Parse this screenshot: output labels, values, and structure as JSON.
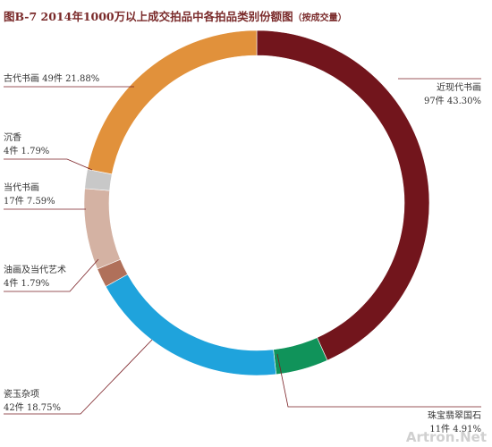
{
  "title": "图B-7  2014年1000万以上成交拍品中各拍品类别份额图",
  "subtitle": "（按成交量）",
  "watermark": "Artron.Net",
  "chart_data": {
    "type": "pie",
    "style": "donut",
    "series": [
      {
        "name": "近现代书画",
        "count_label": "97件",
        "percent_label": "43.30%",
        "value": 43.3,
        "color": "#72151c"
      },
      {
        "name": "珠宝翡翠国石",
        "count_label": "11件",
        "percent_label": "4.91%",
        "value": 4.91,
        "color": "#10935a"
      },
      {
        "name": "瓷玉杂项",
        "count_label": "42件",
        "percent_label": "18.75%",
        "value": 18.75,
        "color": "#1fa3dc"
      },
      {
        "name": "油画及当代艺术",
        "count_label": "4件",
        "percent_label": "1.79%",
        "value": 1.79,
        "color": "#b0705a"
      },
      {
        "name": "当代书画",
        "count_label": "17件",
        "percent_label": "7.59%",
        "value": 7.59,
        "color": "#d4b2a3"
      },
      {
        "name": "沉香",
        "count_label": "4件",
        "percent_label": "1.79%",
        "value": 1.79,
        "color": "#c8c8c8"
      },
      {
        "name": "古代书画",
        "count_label": "49件",
        "percent_label": "21.88%",
        "value": 21.88,
        "color": "#e1913b"
      }
    ]
  }
}
